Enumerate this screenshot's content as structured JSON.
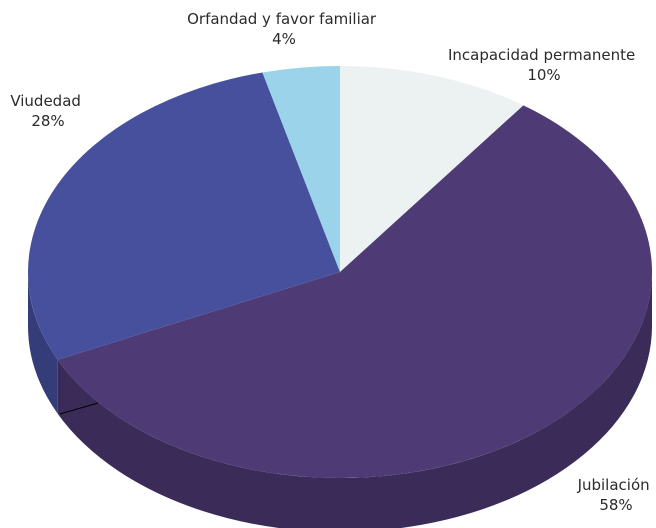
{
  "chart_data": {
    "type": "pie",
    "style": "3d",
    "categories": [
      "Incapacidad permanente",
      "Jubilación",
      "Viudedad",
      "Orfandad y favor familiar"
    ],
    "values": [
      10,
      58,
      28,
      4
    ],
    "percent_labels": [
      "10%",
      "58%",
      "28%",
      "4%"
    ],
    "colors": [
      "#ecf2f2",
      "#4e3a74",
      "#46509c",
      "#9ad3ea"
    ],
    "side_colors": [
      "#bcc4c4",
      "#3a2b58",
      "#343d7a",
      "#6fa9c0"
    ],
    "start_angle_deg": 0,
    "direction": "clockwise",
    "legend": "none",
    "data_labels": "outside"
  }
}
